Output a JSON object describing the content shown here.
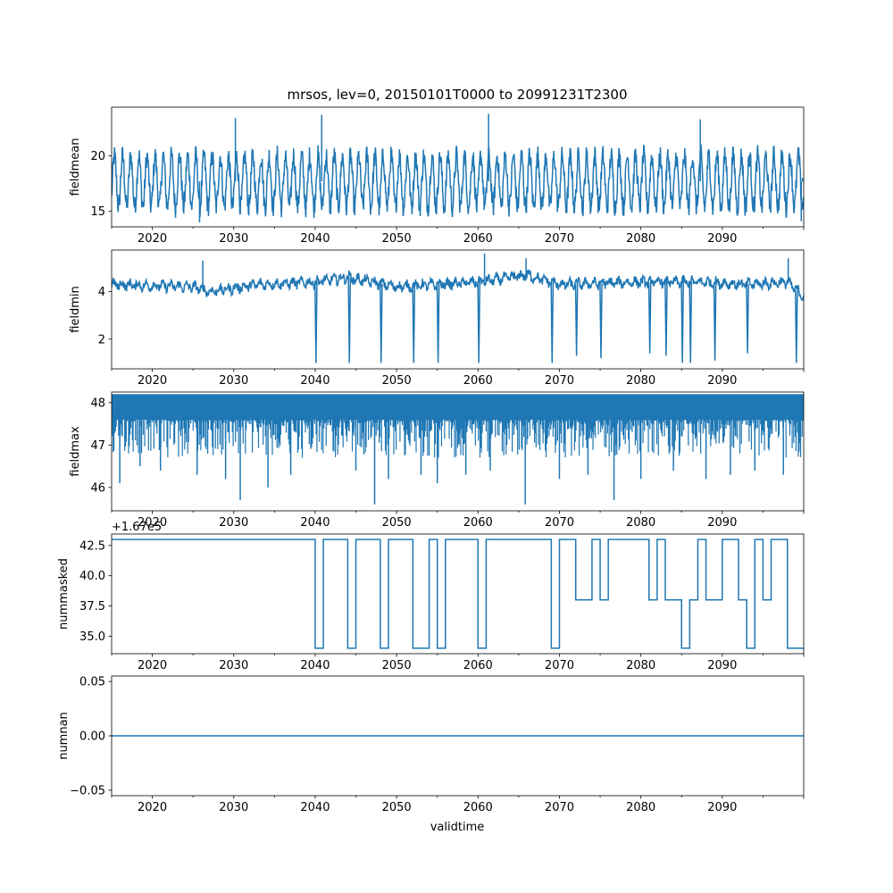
{
  "title": "mrsos, lev=0, 20150101T0000 to 20991231T2300",
  "xlabel": "validtime",
  "line_color": "#1f77b4",
  "chart_data": [
    {
      "type": "line",
      "ylabel": "fieldmean",
      "xlim": [
        2015.0,
        2100.0
      ],
      "ylim": [
        13.6,
        24.4
      ],
      "xticks": [
        2020,
        2030,
        2040,
        2050,
        2060,
        2070,
        2080,
        2090
      ],
      "xtick_labels": [
        "2020",
        "2030",
        "2040",
        "2050",
        "2060",
        "2070",
        "2080",
        "2090"
      ],
      "yticks": [
        15,
        20
      ],
      "ytick_labels": [
        "15",
        "20"
      ],
      "series": [
        {
          "name": "fieldmean",
          "style": "noisy-seasonal",
          "mean": 17.7,
          "amp": 2.3,
          "noise": 1.0,
          "lo": 14.2,
          "hi": 21.6,
          "x": [
            2015.0,
            2025.8,
            2030.2,
            2040.8,
            2061.3,
            2087.3,
            2099.7,
            2099.85,
            2100.0
          ],
          "y": [
            17.5,
            14.0,
            23.4,
            23.7,
            23.8,
            23.3,
            14.1,
            18.0,
            17.6
          ]
        }
      ]
    },
    {
      "type": "line",
      "ylabel": "fieldmin",
      "xlim": [
        2015.0,
        2100.0
      ],
      "ylim": [
        0.75,
        5.75
      ],
      "xticks": [
        2020,
        2030,
        2040,
        2050,
        2060,
        2070,
        2080,
        2090
      ],
      "xtick_labels": [
        "2020",
        "2030",
        "2040",
        "2050",
        "2060",
        "2070",
        "2080",
        "2090"
      ],
      "yticks": [
        2,
        4
      ],
      "ytick_labels": [
        "2",
        "4"
      ],
      "series": [
        {
          "name": "fieldmin",
          "style": "baseline-with-dips",
          "x": [
            2015.0,
            2025.0,
            2027.0,
            2033.0,
            2040.0,
            2044.0,
            2050.0,
            2060.0,
            2066.0,
            2070.0,
            2080.0,
            2088.0,
            2093.0,
            2098.0,
            2100.0
          ],
          "y": [
            4.3,
            4.2,
            4.0,
            4.3,
            4.4,
            4.6,
            4.2,
            4.4,
            4.7,
            4.3,
            4.4,
            4.4,
            4.3,
            4.4,
            3.8
          ],
          "dips_x": [
            2040.1,
            2044.2,
            2048.1,
            2052.1,
            2055.1,
            2060.1,
            2069.1,
            2072.1,
            2075.1,
            2081.1,
            2083.1,
            2085.1,
            2086.1,
            2089.1,
            2093.1,
            2099.1
          ],
          "dips_y": [
            1.0,
            1.0,
            1.0,
            1.0,
            1.0,
            1.0,
            1.0,
            1.3,
            1.2,
            1.4,
            1.3,
            1.0,
            1.0,
            1.1,
            1.4,
            1.0
          ],
          "peaks_x": [
            2026.2,
            2060.8,
            2065.9,
            2098.1
          ],
          "peaks_y": [
            5.3,
            5.6,
            5.4,
            5.4
          ]
        }
      ]
    },
    {
      "type": "line",
      "ylabel": "fieldmax",
      "xlim": [
        2015.0,
        2100.0
      ],
      "ylim": [
        45.45,
        48.25
      ],
      "xticks": [
        2020,
        2030,
        2040,
        2050,
        2060,
        2070,
        2080,
        2090
      ],
      "xtick_labels": [
        "2020",
        "2030",
        "2040",
        "2050",
        "2060",
        "2070",
        "2080",
        "2090"
      ],
      "yticks": [
        46,
        47,
        48
      ],
      "ytick_labels": [
        "46",
        "47",
        "48"
      ],
      "series": [
        {
          "name": "fieldmax",
          "style": "dense-band",
          "top": 48.2,
          "base": 47.85,
          "dips_x": [
            2016.0,
            2018.5,
            2021.0,
            2025.5,
            2029.0,
            2030.8,
            2034.2,
            2037.0,
            2045.0,
            2047.3,
            2049.0,
            2053.0,
            2055.0,
            2058.5,
            2061.5,
            2065.8,
            2070.0,
            2073.5,
            2076.7,
            2080.0,
            2084.0,
            2088.0,
            2091.0,
            2094.0,
            2097.5
          ],
          "dips_y": [
            46.1,
            46.5,
            46.4,
            46.3,
            46.2,
            45.7,
            46.0,
            46.3,
            46.4,
            45.6,
            46.2,
            46.3,
            46.1,
            46.3,
            46.4,
            45.6,
            46.2,
            46.3,
            45.7,
            46.2,
            46.4,
            46.2,
            46.3,
            46.4,
            46.3
          ]
        }
      ]
    },
    {
      "type": "line",
      "ylabel": "nummasked",
      "offset_text": "+1.67e5",
      "xlim": [
        2015.0,
        2100.0
      ],
      "ylim": [
        33.55,
        43.45
      ],
      "xticks": [
        2020,
        2030,
        2040,
        2050,
        2060,
        2070,
        2080,
        2090
      ],
      "xtick_labels": [
        "2020",
        "2030",
        "2040",
        "2050",
        "2060",
        "2070",
        "2080",
        "2090"
      ],
      "yticks": [
        35.0,
        37.5,
        40.0,
        42.5
      ],
      "ytick_labels": [
        "35.0",
        "37.5",
        "40.0",
        "42.5"
      ],
      "series": [
        {
          "name": "nummasked",
          "style": "steps",
          "x": [
            2015.0,
            2040.0,
            2041.0,
            2044.0,
            2045.0,
            2048.0,
            2049.0,
            2052.0,
            2054.0,
            2055.0,
            2056.0,
            2060.0,
            2061.0,
            2069.0,
            2070.0,
            2072.0,
            2074.0,
            2075.0,
            2076.0,
            2081.0,
            2082.0,
            2083.0,
            2085.0,
            2086.0,
            2087.0,
            2088.0,
            2090.0,
            2092.0,
            2093.0,
            2094.0,
            2095.0,
            2096.0,
            2098.0,
            2099.0,
            2100.0
          ],
          "y": [
            43.0,
            34.0,
            43.0,
            34.0,
            43.0,
            34.0,
            43.0,
            34.0,
            43.0,
            34.0,
            43.0,
            34.0,
            43.0,
            34.0,
            43.0,
            38.0,
            43.0,
            38.0,
            43.0,
            38.0,
            43.0,
            38.0,
            34.0,
            38.0,
            43.0,
            38.0,
            43.0,
            38.0,
            34.0,
            43.0,
            38.0,
            43.0,
            34.0,
            34.0,
            34.0
          ]
        }
      ]
    },
    {
      "type": "line",
      "ylabel": "numnan",
      "xlim": [
        2015.0,
        2100.0
      ],
      "ylim": [
        -0.055,
        0.055
      ],
      "xticks": [
        2020,
        2030,
        2040,
        2050,
        2060,
        2070,
        2080,
        2090
      ],
      "xtick_labels": [
        "2020",
        "2030",
        "2040",
        "2050",
        "2060",
        "2070",
        "2080",
        "2090"
      ],
      "yticks": [
        -0.05,
        0.0,
        0.05
      ],
      "ytick_labels": [
        "−0.05",
        "0.00",
        "0.05"
      ],
      "series": [
        {
          "name": "numnan",
          "style": "line",
          "x": [
            2015.0,
            2100.0
          ],
          "y": [
            0.0,
            0.0
          ]
        }
      ]
    }
  ]
}
